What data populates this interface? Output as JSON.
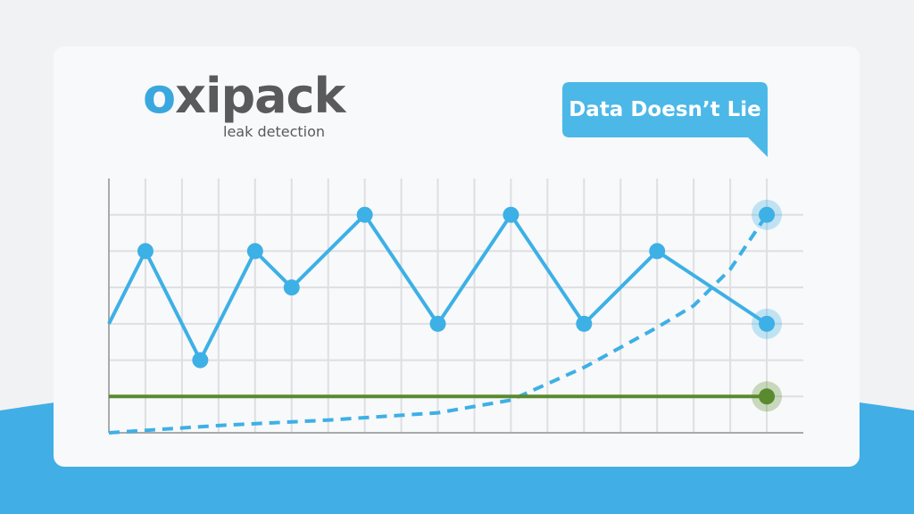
{
  "logo": {
    "name": "oxipack",
    "tagline": "leak detection"
  },
  "badge": "Data Doesn’t Lie",
  "chart_data": {
    "type": "line",
    "xlim": [
      0,
      19
    ],
    "ylim": [
      0,
      7
    ],
    "xticks": [
      1,
      2,
      3,
      4,
      5,
      6,
      7,
      8,
      9,
      10,
      11,
      12,
      13,
      14,
      15,
      16,
      17,
      18
    ],
    "yticks": [
      1,
      2,
      3,
      4,
      5,
      6
    ],
    "grid": true,
    "series": [
      {
        "color": "#3db0e6",
        "dash": false,
        "markers": "all",
        "x": [
          0,
          1,
          2.5,
          4,
          5,
          7,
          9,
          11,
          13,
          15,
          18
        ],
        "values": [
          3,
          5,
          2,
          5,
          4,
          6,
          3,
          6,
          3,
          5,
          3
        ]
      },
      {
        "color": "#3db0e6",
        "dash": true,
        "markers": "end",
        "x": [
          0,
          3,
          6,
          9,
          11,
          13,
          15,
          16,
          17,
          18
        ],
        "values": [
          0,
          0.2,
          0.35,
          0.55,
          0.9,
          1.8,
          2.9,
          3.5,
          4.5,
          6
        ]
      },
      {
        "color": "#5a8a2e",
        "dash": false,
        "markers": "end",
        "x": [
          0,
          18
        ],
        "values": [
          1,
          1
        ]
      }
    ]
  }
}
